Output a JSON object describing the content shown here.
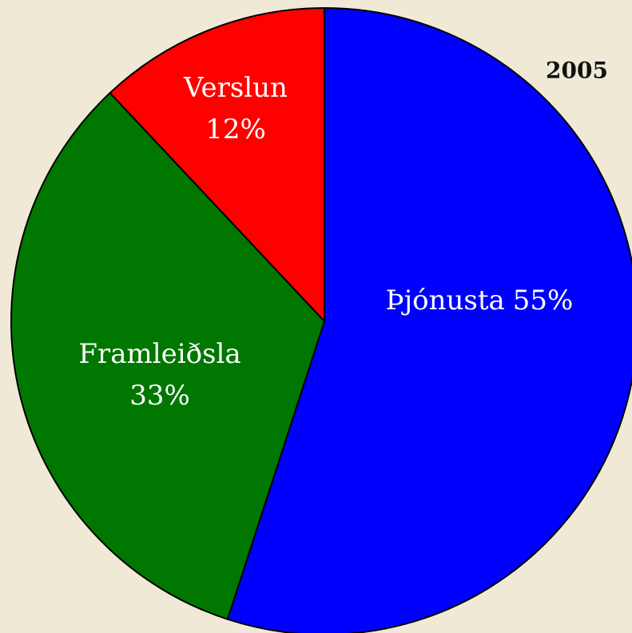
{
  "chart_data": {
    "type": "pie",
    "title": "2005",
    "categories": [
      "Þjónusta",
      "Framleiðsla",
      "Verslun"
    ],
    "values": [
      55,
      33,
      12
    ],
    "value_labels": [
      "55%",
      "33%",
      "12%"
    ],
    "colors": [
      "#0000ff",
      "#007700",
      "#ff0000"
    ]
  }
}
